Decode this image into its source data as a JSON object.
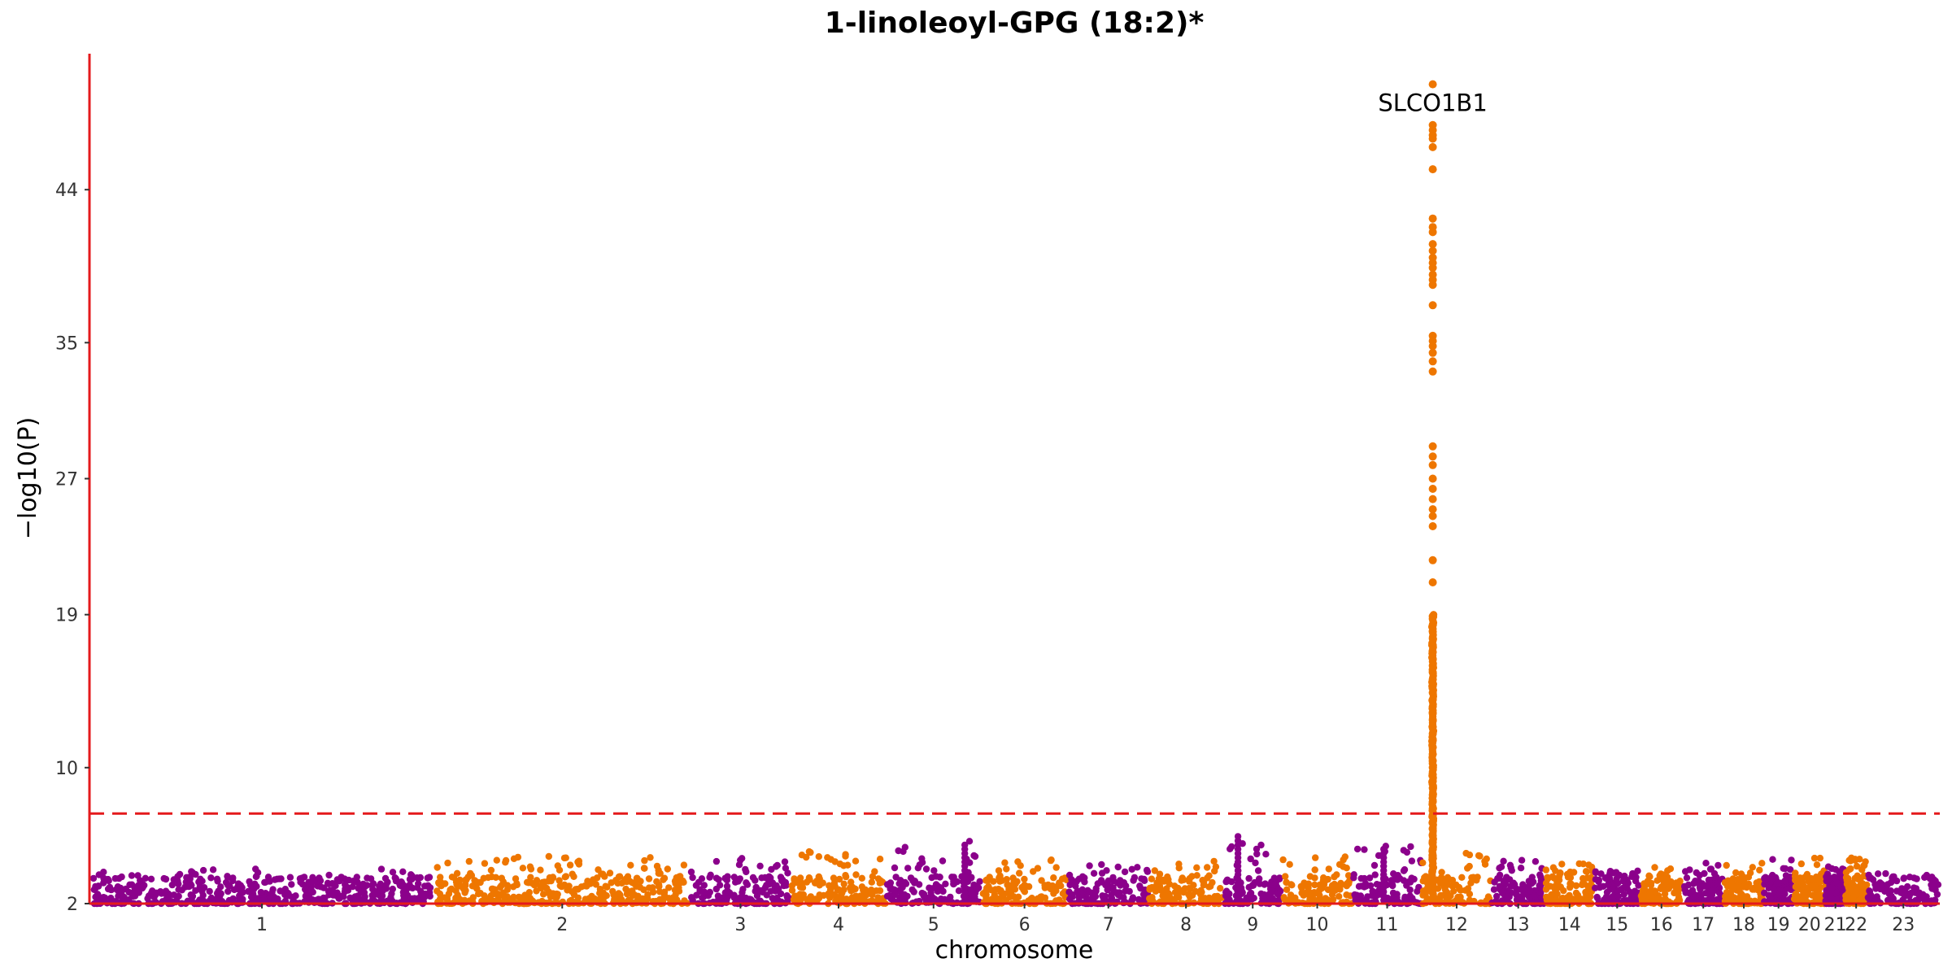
{
  "chart_data": {
    "type": "scatter",
    "subtype": "manhattan",
    "title": "1-linoleoyl-GPG (18:2)*",
    "xlabel": "chromosome",
    "ylabel": "−log10(P)",
    "ylim": [
      2,
      52
    ],
    "yticks": [
      2,
      10,
      19,
      27,
      35,
      44
    ],
    "grid": false,
    "legend": "none",
    "threshold": {
      "value": 7.3,
      "style": "dashed",
      "color": "#e41a1c"
    },
    "colors": {
      "odd": "#8B008B",
      "even": "#EE7600",
      "axis": "#e41a1c"
    },
    "chromosomes": [
      {
        "label": "1",
        "start": 0,
        "end": 0.2237
      },
      {
        "label": "2",
        "start": 0.2237,
        "end": 0.3895
      },
      {
        "label": "3",
        "start": 0.3895,
        "end": 0.4549
      },
      {
        "label": "4",
        "start": 0.4549,
        "end": 0.5167
      },
      {
        "label": "5",
        "start": 0.5167,
        "end": 0.5781
      },
      {
        "label": "6",
        "start": 0.5781,
        "end": 0.6347
      },
      {
        "label": "7",
        "start": 0.6347,
        "end": 0.6869
      },
      {
        "label": "8",
        "start": 0.6869,
        "end": 0.7353
      },
      {
        "label": "9",
        "start": 0.7353,
        "end": 0.7735
      },
      {
        "label": "10",
        "start": 0.7735,
        "end": 0.819
      },
      {
        "label": "11",
        "start": 0.819,
        "end": 0.8642
      },
      {
        "label": "12",
        "start": 0.8642,
        "end": 0.9091
      },
      {
        "label": "13",
        "start": 0.9091,
        "end": 0.9441
      },
      {
        "label": "14",
        "start": 0.9441,
        "end": 0.9757
      },
      {
        "label": "15",
        "start": 0.9757,
        "end": 1.0058
      },
      {
        "label": "16",
        "start": 1.0058,
        "end": 1.0332
      },
      {
        "label": "17",
        "start": 1.0332,
        "end": 1.06
      },
      {
        "label": "18",
        "start": 1.06,
        "end": 1.0858
      },
      {
        "label": "19",
        "start": 1.0858,
        "end": 1.105
      },
      {
        "label": "20",
        "start": 1.105,
        "end": 1.1259
      },
      {
        "label": "21",
        "start": 1.1259,
        "end": 1.1387
      },
      {
        "label": "22",
        "start": 1.1387,
        "end": 1.1528
      },
      {
        "label": "23",
        "start": 1.1528,
        "end": 1.2
      }
    ],
    "baseline_peaks": {
      "1": 4.1,
      "2": 4.8,
      "3": 4.7,
      "4": 5.1,
      "5": 5.7,
      "6": 4.6,
      "7": 4.5,
      "8": 4.5,
      "9": 6.0,
      "10": 4.8,
      "11": 5.5,
      "12": 5.0,
      "13": 4.6,
      "14": 4.4,
      "15": 4.0,
      "16": 4.2,
      "17": 4.4,
      "18": 4.4,
      "19": 4.6,
      "20": 4.8,
      "21": 4.2,
      "22": 4.7,
      "23": 3.8
    },
    "secondary_peaks": [
      {
        "chrom": "5",
        "pos": 0.83,
        "value": 5.6
      },
      {
        "chrom": "9",
        "pos": 0.25,
        "value": 6.0
      },
      {
        "chrom": "11",
        "pos": 0.45,
        "value": 5.4
      }
    ],
    "lead_signal": {
      "chrom": "12",
      "pos": 0.155,
      "values": [
        50.2,
        47.8,
        47.5,
        47.2,
        47.0,
        46.5,
        45.2,
        42.3,
        41.8,
        41.5,
        40.8,
        40.4,
        40.0,
        39.7,
        39.4,
        39.0,
        38.7,
        38.4,
        37.2,
        35.4,
        35.1,
        34.8,
        34.4,
        33.9,
        33.3,
        28.9,
        28.3,
        27.8,
        27.0,
        26.4,
        25.8,
        25.2,
        24.8,
        24.2,
        22.2,
        20.9,
        18.9,
        18.4,
        18.0,
        17.6,
        17.2,
        16.8,
        16.4,
        16.0,
        15.6,
        15.2,
        14.8,
        14.4,
        14.0,
        13.6,
        13.2,
        12.8,
        12.4,
        12.0,
        11.6,
        11.2,
        10.8,
        10.4,
        10.0,
        9.6,
        9.2,
        8.8,
        8.4,
        8.0,
        7.6,
        7.2,
        6.8,
        6.4,
        6.0,
        5.6,
        5.2,
        4.8
      ]
    },
    "annotations": [
      {
        "text": "SLCO1B1",
        "chrom": "12",
        "value": 50.2
      }
    ]
  }
}
